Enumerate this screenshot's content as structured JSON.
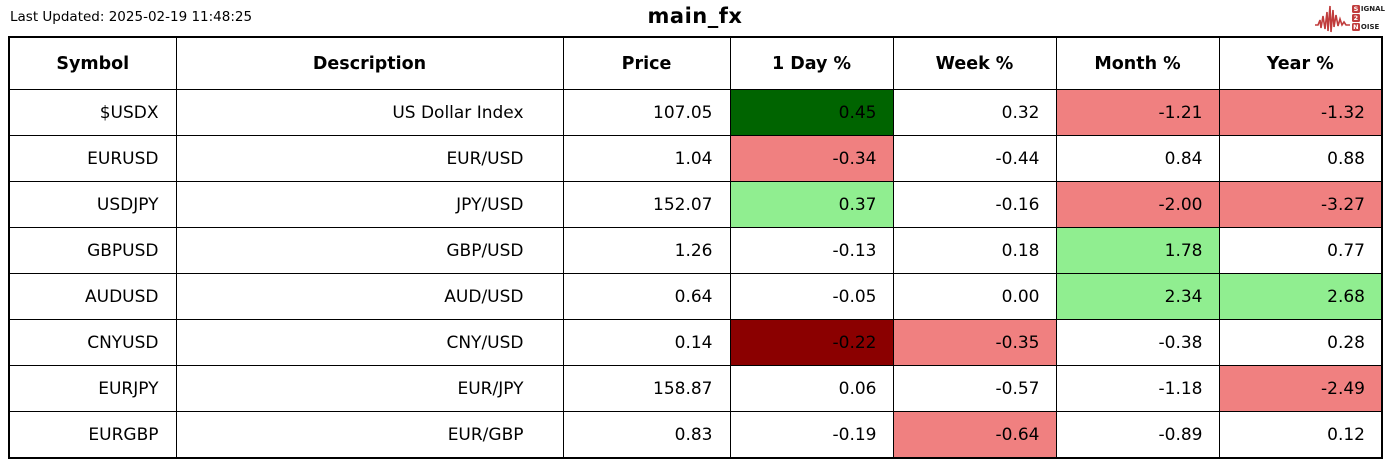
{
  "header": {
    "last_updated": "Last Updated: 2025-02-19 11:48:25",
    "title": "main_fx",
    "logo": {
      "signal_boxed": "S",
      "signal_rest": "IGNAL",
      "mid_boxed": "2",
      "noise_boxed": "N",
      "noise_rest": "OISE",
      "accent_color": "#C03C3C"
    }
  },
  "chart_data": {
    "type": "table",
    "title": "main_fx",
    "columns": [
      "Symbol",
      "Description",
      "Price",
      "1 Day %",
      "Week %",
      "Month %",
      "Year %"
    ],
    "rows": [
      {
        "cells": [
          "$USDX",
          "US Dollar Index",
          "107.05",
          "0.45",
          "0.32",
          "-1.21",
          "-1.32"
        ],
        "bg": [
          null,
          null,
          null,
          "darkgreen",
          null,
          "lightcoral",
          "lightcoral"
        ]
      },
      {
        "cells": [
          "EURUSD",
          "EUR/USD",
          "1.04",
          "-0.34",
          "-0.44",
          "0.84",
          "0.88"
        ],
        "bg": [
          null,
          null,
          null,
          "lightcoral",
          null,
          null,
          null
        ]
      },
      {
        "cells": [
          "USDJPY",
          "JPY/USD",
          "152.07",
          "0.37",
          "-0.16",
          "-2.00",
          "-3.27"
        ],
        "bg": [
          null,
          null,
          null,
          "lightgreen",
          null,
          "lightcoral",
          "lightcoral"
        ]
      },
      {
        "cells": [
          "GBPUSD",
          "GBP/USD",
          "1.26",
          "-0.13",
          "0.18",
          "1.78",
          "0.77"
        ],
        "bg": [
          null,
          null,
          null,
          null,
          null,
          "lightgreen",
          null
        ]
      },
      {
        "cells": [
          "AUDUSD",
          "AUD/USD",
          "0.64",
          "-0.05",
          "0.00",
          "2.34",
          "2.68"
        ],
        "bg": [
          null,
          null,
          null,
          null,
          null,
          "lightgreen",
          "lightgreen"
        ]
      },
      {
        "cells": [
          "CNYUSD",
          "CNY/USD",
          "0.14",
          "-0.22",
          "-0.35",
          "-0.38",
          "0.28"
        ],
        "bg": [
          null,
          null,
          null,
          "darkred",
          "lightcoral",
          null,
          null
        ]
      },
      {
        "cells": [
          "EURJPY",
          "EUR/JPY",
          "158.87",
          "0.06",
          "-0.57",
          "-1.18",
          "-2.49"
        ],
        "bg": [
          null,
          null,
          null,
          null,
          null,
          null,
          "lightcoral"
        ]
      },
      {
        "cells": [
          "EURGBP",
          "EUR/GBP",
          "0.83",
          "-0.19",
          "-0.64",
          "-0.89",
          "0.12"
        ],
        "bg": [
          null,
          null,
          null,
          null,
          "lightcoral",
          null,
          null
        ]
      }
    ],
    "cell_colors": {
      "darkgreen": "#006400",
      "lightgreen": "#90EE90",
      "lightcoral": "#F08080",
      "darkred": "#8B0000"
    }
  }
}
